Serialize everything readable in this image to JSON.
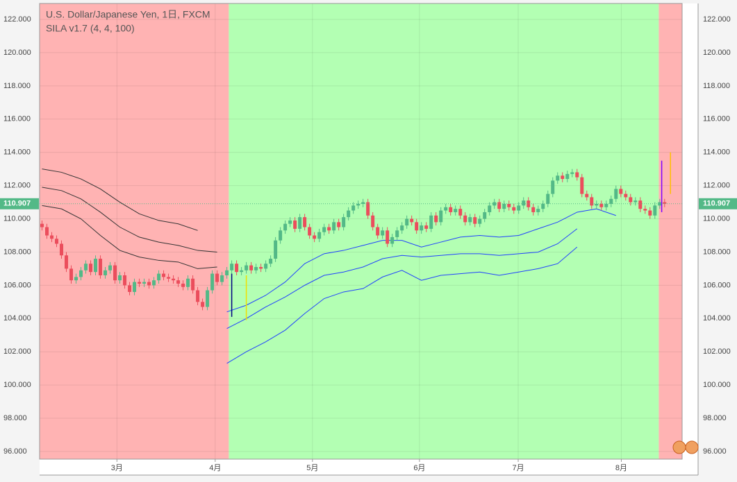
{
  "chart_data": {
    "type": "candlestick",
    "title": "U.S. Dollar/Japanese Yen, 1日, FXCM",
    "subtitle": "SILA v1.7 (4, 4, 100)",
    "open": [
      109.7,
      109.5,
      109.0,
      108.8,
      108.5,
      107.8,
      107.0,
      106.3,
      106.5,
      106.9,
      107.3,
      106.8,
      107.6,
      106.6,
      106.9,
      107.2,
      106.3,
      106.6,
      106.0,
      105.6,
      106.2,
      106.1,
      106.2,
      106.0,
      106.3,
      106.7,
      106.5,
      106.4,
      106.3,
      106.1,
      105.9,
      106.4,
      105.7,
      105.0,
      104.7,
      105.7,
      106.7,
      106.2,
      106.6,
      106.9,
      107.3,
      106.8,
      106.9,
      107.2,
      106.9,
      107.1,
      107.0,
      107.3,
      107.6,
      108.7,
      109.3,
      109.7,
      109.9,
      109.4,
      110.1,
      109.5,
      109.0,
      108.8,
      109.2,
      109.5,
      109.3,
      109.8,
      109.5,
      110.1,
      110.5,
      110.8,
      110.9,
      111.0,
      110.2,
      109.5,
      109.0,
      109.3,
      108.5,
      108.9,
      109.3,
      109.6,
      110.0,
      109.8,
      109.3,
      109.6,
      109.4,
      110.2,
      109.8,
      110.5,
      110.7,
      110.4,
      110.6,
      110.2,
      109.8,
      110.1,
      109.7,
      110.0,
      110.4,
      110.8,
      111.0,
      110.6,
      110.9,
      110.7,
      110.5,
      110.8,
      111.1,
      110.7,
      110.4,
      110.6,
      110.9,
      111.5,
      112.3,
      112.6,
      112.4,
      112.7,
      112.8,
      112.5,
      111.5,
      111.3,
      110.8,
      110.9,
      110.7,
      110.9,
      111.2,
      111.8,
      111.5,
      111.3,
      111.0,
      111.1,
      110.6,
      110.5,
      110.2,
      110.8,
      111.0
    ],
    "high": [
      109.9,
      109.7,
      109.2,
      109.0,
      108.7,
      108.0,
      107.2,
      106.7,
      107.1,
      107.5,
      107.5,
      107.8,
      107.8,
      107.1,
      107.4,
      107.4,
      106.8,
      106.8,
      106.2,
      106.4,
      106.4,
      106.4,
      106.4,
      106.5,
      106.9,
      106.9,
      106.7,
      106.6,
      106.5,
      106.3,
      106.6,
      106.6,
      105.9,
      105.2,
      105.9,
      106.9,
      106.9,
      106.8,
      107.1,
      107.5,
      107.5,
      107.1,
      107.4,
      107.4,
      107.3,
      107.3,
      107.5,
      107.8,
      108.9,
      109.5,
      109.9,
      110.1,
      110.1,
      110.3,
      110.3,
      109.7,
      109.2,
      109.4,
      109.7,
      109.7,
      110.0,
      110.0,
      110.3,
      110.7,
      111.0,
      111.1,
      111.2,
      111.2,
      110.4,
      109.7,
      109.5,
      109.5,
      109.1,
      109.5,
      109.8,
      110.2,
      110.2,
      110.0,
      109.8,
      109.8,
      110.4,
      110.4,
      110.7,
      110.9,
      110.9,
      110.8,
      110.8,
      110.4,
      110.3,
      110.3,
      110.2,
      110.6,
      111.0,
      111.2,
      111.2,
      111.1,
      111.1,
      110.9,
      111.0,
      111.3,
      111.3,
      110.9,
      110.8,
      111.1,
      111.7,
      112.5,
      112.8,
      112.8,
      112.9,
      113.0,
      113.0,
      112.7,
      111.7,
      111.5,
      111.1,
      111.1,
      111.1,
      111.4,
      112.0,
      112.0,
      111.7,
      111.5,
      111.3,
      111.3,
      110.8,
      110.7,
      111.0,
      111.2,
      111.2
    ],
    "low": [
      109.3,
      108.8,
      108.6,
      108.3,
      107.6,
      106.8,
      106.1,
      106.1,
      106.3,
      106.7,
      106.6,
      106.6,
      106.4,
      106.4,
      106.7,
      106.1,
      106.1,
      105.8,
      105.4,
      105.4,
      105.9,
      105.9,
      105.8,
      105.8,
      106.1,
      106.3,
      106.2,
      106.1,
      105.9,
      105.7,
      105.7,
      105.5,
      104.8,
      104.5,
      104.5,
      105.5,
      106.0,
      106.0,
      106.4,
      106.7,
      106.6,
      106.6,
      106.7,
      106.7,
      106.7,
      106.8,
      106.8,
      107.1,
      107.4,
      108.5,
      109.1,
      109.5,
      109.2,
      109.2,
      109.3,
      108.8,
      108.6,
      108.6,
      109.0,
      109.1,
      109.1,
      109.3,
      109.3,
      109.9,
      110.3,
      110.6,
      110.7,
      110.0,
      109.3,
      108.8,
      108.8,
      108.3,
      108.3,
      108.7,
      109.1,
      109.4,
      109.6,
      109.1,
      109.1,
      109.2,
      109.2,
      109.6,
      109.6,
      110.3,
      110.2,
      110.2,
      110.0,
      109.6,
      109.6,
      109.5,
      109.5,
      109.8,
      110.2,
      110.6,
      110.4,
      110.4,
      110.5,
      110.3,
      110.3,
      110.6,
      110.5,
      110.2,
      110.2,
      110.4,
      110.7,
      111.3,
      112.1,
      112.2,
      112.2,
      112.5,
      112.3,
      111.3,
      111.1,
      110.6,
      110.6,
      110.5,
      110.5,
      110.7,
      111.0,
      111.3,
      111.1,
      110.8,
      110.8,
      110.4,
      110.3,
      110.0,
      110.0,
      110.6,
      110.7
    ],
    "close": [
      109.5,
      109.0,
      108.8,
      108.5,
      107.8,
      107.0,
      106.3,
      106.5,
      106.9,
      107.3,
      106.8,
      107.6,
      106.6,
      106.9,
      107.2,
      106.3,
      106.6,
      106.0,
      105.6,
      106.2,
      106.1,
      106.2,
      106.0,
      106.3,
      106.7,
      106.5,
      106.4,
      106.3,
      106.1,
      105.9,
      106.4,
      105.7,
      105.0,
      104.7,
      105.7,
      106.7,
      106.2,
      106.6,
      106.9,
      107.3,
      106.8,
      106.9,
      107.2,
      106.9,
      107.1,
      107.0,
      107.3,
      107.6,
      108.7,
      109.3,
      109.7,
      109.9,
      109.4,
      110.1,
      109.5,
      109.0,
      108.8,
      109.2,
      109.5,
      109.3,
      109.8,
      109.5,
      110.1,
      110.5,
      110.8,
      110.9,
      111.0,
      110.2,
      109.5,
      109.0,
      109.3,
      108.5,
      108.9,
      109.3,
      109.6,
      110.0,
      109.8,
      109.3,
      109.6,
      109.4,
      110.2,
      109.8,
      110.5,
      110.7,
      110.4,
      110.6,
      110.2,
      109.8,
      110.1,
      109.7,
      110.0,
      110.4,
      110.8,
      111.0,
      110.6,
      110.9,
      110.7,
      110.5,
      110.8,
      111.1,
      110.7,
      110.4,
      110.6,
      110.9,
      111.5,
      112.3,
      112.6,
      112.4,
      112.7,
      112.8,
      112.5,
      111.5,
      111.3,
      110.8,
      110.9,
      110.7,
      110.9,
      111.2,
      111.8,
      111.5,
      111.3,
      111.0,
      111.1,
      110.6,
      110.5,
      110.2,
      110.8,
      111.0,
      110.907
    ],
    "up_color": "#53b987",
    "down_color": "#eb4d5c",
    "xlim": [
      -0.5,
      131.6
    ],
    "xticks": [
      {
        "value": 15.4,
        "label": "3月"
      },
      {
        "value": 35.6,
        "label": "4月"
      },
      {
        "value": 55.6,
        "label": "5月"
      },
      {
        "value": 77.6,
        "label": "6月"
      },
      {
        "value": 97.9,
        "label": "7月"
      },
      {
        "value": 119.1,
        "label": "8月"
      }
    ],
    "ylim": [
      95.54,
      122.96
    ],
    "yticks": [
      {
        "value": 96,
        "label": "96.000"
      },
      {
        "value": 98,
        "label": "98.000"
      },
      {
        "value": 100,
        "label": "100.000"
      },
      {
        "value": 102,
        "label": "102.000"
      },
      {
        "value": 104,
        "label": "104.000"
      },
      {
        "value": 106,
        "label": "106.000"
      },
      {
        "value": 108,
        "label": "108.000"
      },
      {
        "value": 110,
        "label": "110.000"
      },
      {
        "value": 112,
        "label": "112.000"
      },
      {
        "value": 114,
        "label": "114.000"
      },
      {
        "value": 116,
        "label": "116.000"
      },
      {
        "value": 118,
        "label": "118.000"
      },
      {
        "value": 120,
        "label": "120.000"
      },
      {
        "value": 122,
        "label": "122.000"
      }
    ],
    "grid": true,
    "regions": [
      {
        "start": -0.5,
        "end": 38.4,
        "color": "#ffb3b3"
      },
      {
        "start": 38.4,
        "end": 126.8,
        "color": "#b3ffb3"
      },
      {
        "start": 126.8,
        "end": 131.6,
        "color": "#ffb3b3"
      }
    ],
    "overlays": [
      {
        "color": "#333333",
        "x": [
          0,
          4,
          8,
          12,
          16,
          20,
          24,
          28,
          32
        ],
        "values": [
          113.0,
          112.8,
          112.4,
          111.8,
          111.0,
          110.3,
          109.9,
          109.7,
          109.3
        ]
      },
      {
        "color": "#333333",
        "x": [
          0,
          4,
          8,
          12,
          16,
          20,
          24,
          28,
          32,
          36
        ],
        "values": [
          111.9,
          111.7,
          111.2,
          110.4,
          109.5,
          108.9,
          108.6,
          108.4,
          108.1,
          108.0
        ]
      },
      {
        "color": "#333333",
        "x": [
          0,
          4,
          8,
          12,
          16,
          20,
          24,
          28,
          32,
          36
        ],
        "values": [
          110.8,
          110.6,
          110.0,
          109.0,
          108.1,
          107.7,
          107.5,
          107.4,
          107.0,
          107.1
        ]
      },
      {
        "color": "#2040ff",
        "x": [
          38,
          42,
          46,
          50,
          54,
          58,
          62,
          66,
          70,
          74,
          78,
          82,
          86,
          90,
          94,
          98,
          102,
          106,
          110,
          114,
          118
        ],
        "values": [
          104.4,
          104.8,
          105.4,
          106.2,
          107.3,
          107.9,
          108.1,
          108.4,
          108.7,
          108.7,
          108.3,
          108.6,
          108.9,
          109.0,
          108.9,
          109.0,
          109.4,
          109.8,
          110.4,
          110.6,
          110.2
        ]
      },
      {
        "color": "#2040ff",
        "x": [
          38,
          42,
          46,
          50,
          54,
          58,
          62,
          66,
          70,
          74,
          78,
          82,
          86,
          90,
          94,
          98,
          102,
          106,
          110
        ],
        "values": [
          103.4,
          104.0,
          104.7,
          105.3,
          106.0,
          106.6,
          106.8,
          107.1,
          107.6,
          107.8,
          107.7,
          107.8,
          107.9,
          107.9,
          107.8,
          107.9,
          108.0,
          108.5,
          109.4
        ]
      },
      {
        "color": "#2040ff",
        "x": [
          38,
          42,
          46,
          50,
          54,
          58,
          62,
          66,
          70,
          74,
          78,
          82,
          86,
          90,
          94,
          98,
          102,
          106,
          110
        ],
        "values": [
          101.3,
          102.0,
          102.6,
          103.3,
          104.3,
          105.2,
          105.6,
          105.8,
          106.5,
          106.9,
          106.3,
          106.6,
          106.7,
          106.8,
          106.6,
          106.8,
          107.0,
          107.3,
          108.3
        ]
      }
    ],
    "markers": [
      {
        "x": 39,
        "low": 104.1,
        "high": 106.7,
        "color": "#000080"
      },
      {
        "x": 42,
        "low": 103.9,
        "high": 106.6,
        "color": "#f0e000"
      },
      {
        "x": 127.4,
        "low": 110.4,
        "high": 113.5,
        "color": "#8000ff"
      },
      {
        "x": 129.2,
        "low": 111.5,
        "high": 114.0,
        "color": "#ffc000"
      }
    ]
  }
}
